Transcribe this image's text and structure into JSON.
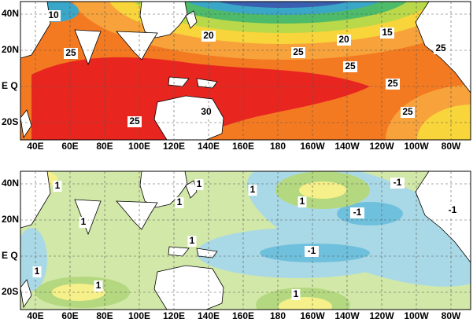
{
  "axes": {
    "lat_labels": [
      "40N",
      "20N",
      "E Q",
      "20S"
    ],
    "lon_labels": [
      "40E",
      "60E",
      "80E",
      "100E",
      "120E",
      "140E",
      "160E",
      "180",
      "160W",
      "140W",
      "120W",
      "100W",
      "80W"
    ]
  },
  "panels": [
    {
      "contour_labels": [
        "10",
        "20",
        "25",
        "25",
        "20",
        "15",
        "25",
        "25",
        "25",
        "25",
        "30",
        "25"
      ]
    },
    {
      "contour_labels": [
        "1",
        "1",
        "1",
        "1",
        "1",
        "-1",
        "-1",
        "-1",
        "1",
        "1",
        "-1",
        "1",
        "1",
        "1"
      ]
    }
  ]
}
